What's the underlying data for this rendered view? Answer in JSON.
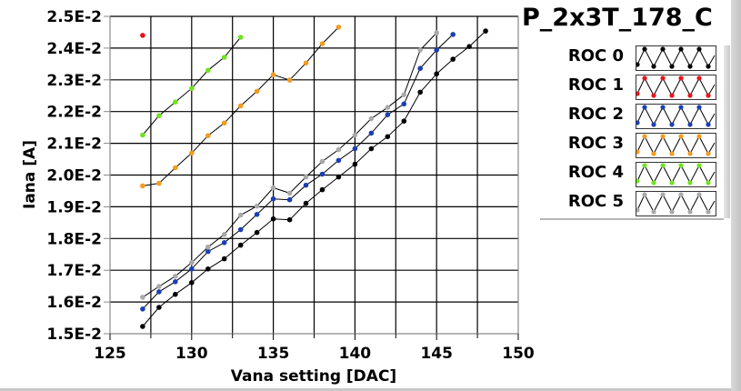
{
  "chart_data": {
    "type": "line",
    "title": "P_2x3T_178_C",
    "xlabel": "Vana setting [DAC]",
    "ylabel": "Iana [A]",
    "xlim": [
      125,
      150
    ],
    "ylim": [
      0.015,
      0.025
    ],
    "xticks": [
      125,
      130,
      135,
      140,
      145,
      150
    ],
    "xtick_labels": [
      "125",
      "130",
      "135",
      "140",
      "145",
      "150"
    ],
    "xminor_ticks": [
      127.5,
      132.5,
      137.5,
      142.5,
      147.5
    ],
    "yticks": [
      0.015,
      0.016,
      0.017,
      0.018,
      0.019,
      0.02,
      0.021,
      0.022,
      0.023,
      0.024,
      0.025
    ],
    "ytick_labels": [
      "1.5E-2",
      "1.6E-2",
      "1.7E-2",
      "1.8E-2",
      "1.9E-2",
      "2.0E-2",
      "2.1E-2",
      "2.2E-2",
      "2.3E-2",
      "2.4E-2",
      "2.5E-2"
    ],
    "grid": true,
    "legend_position": "right",
    "series": [
      {
        "name": "ROC 0",
        "color": "#000000",
        "x_start": 127,
        "values": [
          0.01523,
          0.01583,
          0.01624,
          0.01661,
          0.01704,
          0.01736,
          0.01779,
          0.01819,
          0.01862,
          0.01859,
          0.01911,
          0.01954,
          0.01994,
          0.02034,
          0.02083,
          0.02121,
          0.0217,
          0.02261,
          0.02319,
          0.02365,
          0.02405,
          0.02454
        ]
      },
      {
        "name": "ROC 1",
        "color": "#e8141c",
        "x_start": 127,
        "values": [
          0.0244
        ]
      },
      {
        "name": "ROC 2",
        "color": "#1a3fb5",
        "x_start": 127,
        "values": [
          0.01578,
          0.01632,
          0.01664,
          0.01704,
          0.01759,
          0.01787,
          0.01828,
          0.01876,
          0.01925,
          0.01922,
          0.01968,
          0.02003,
          0.02046,
          0.02083,
          0.02132,
          0.0219,
          0.02224,
          0.02336,
          0.02394,
          0.02443
        ]
      },
      {
        "name": "ROC 3",
        "color": "#f29b1f",
        "x_start": 127,
        "values": [
          0.01966,
          0.01974,
          0.02023,
          0.02069,
          0.02124,
          0.02164,
          0.02218,
          0.02264,
          0.02316,
          0.02299,
          0.02353,
          0.02414,
          0.02466
        ]
      },
      {
        "name": "ROC 4",
        "color": "#6fe31f",
        "x_start": 127,
        "values": [
          0.02126,
          0.02187,
          0.0223,
          0.02273,
          0.0233,
          0.02371,
          0.02434
        ]
      },
      {
        "name": "ROC 5",
        "color": "#a9a9a9",
        "x_start": 127,
        "values": [
          0.01615,
          0.01649,
          0.01681,
          0.01724,
          0.01773,
          0.01813,
          0.01874,
          0.01902,
          0.0196,
          0.01943,
          0.01994,
          0.02043,
          0.0208,
          0.02126,
          0.02178,
          0.02213,
          0.02253,
          0.02394,
          0.02448
        ]
      }
    ]
  },
  "legend": {
    "items": [
      {
        "label": "ROC 0",
        "color": "#000000"
      },
      {
        "label": "ROC 1",
        "color": "#e8141c"
      },
      {
        "label": "ROC 2",
        "color": "#1a3fb5"
      },
      {
        "label": "ROC 3",
        "color": "#f29b1f"
      },
      {
        "label": "ROC 4",
        "color": "#6fe31f"
      },
      {
        "label": "ROC 5",
        "color": "#a9a9a9"
      }
    ]
  }
}
